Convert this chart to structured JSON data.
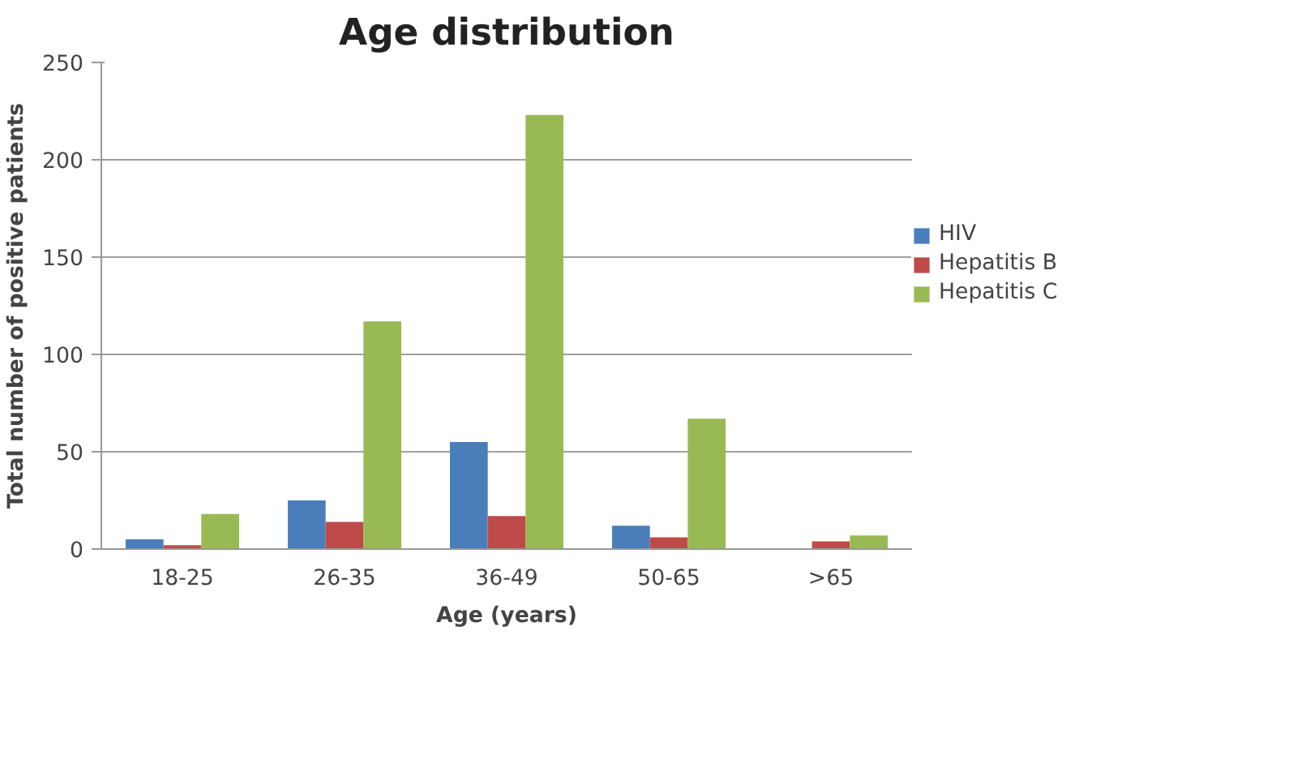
{
  "chart_data": {
    "type": "bar",
    "title": "Age distribution",
    "xlabel": "Age (years)",
    "ylabel": "Total number of positive patients",
    "categories": [
      "18-25",
      "26-35",
      "36-49",
      "50-65",
      ">65"
    ],
    "series": [
      {
        "name": "HIV",
        "color": "#4a7ebb",
        "values": [
          5,
          25,
          55,
          12,
          0
        ]
      },
      {
        "name": "Hepatitis B",
        "color": "#be4b48",
        "values": [
          2,
          14,
          17,
          6,
          4
        ]
      },
      {
        "name": "Hepatitis C",
        "color": "#98b954",
        "values": [
          18,
          117,
          223,
          67,
          7
        ]
      }
    ],
    "ylim": [
      0,
      250
    ],
    "yticks": [
      0,
      50,
      100,
      150,
      200,
      250
    ],
    "grid": "y",
    "legend": "right"
  }
}
